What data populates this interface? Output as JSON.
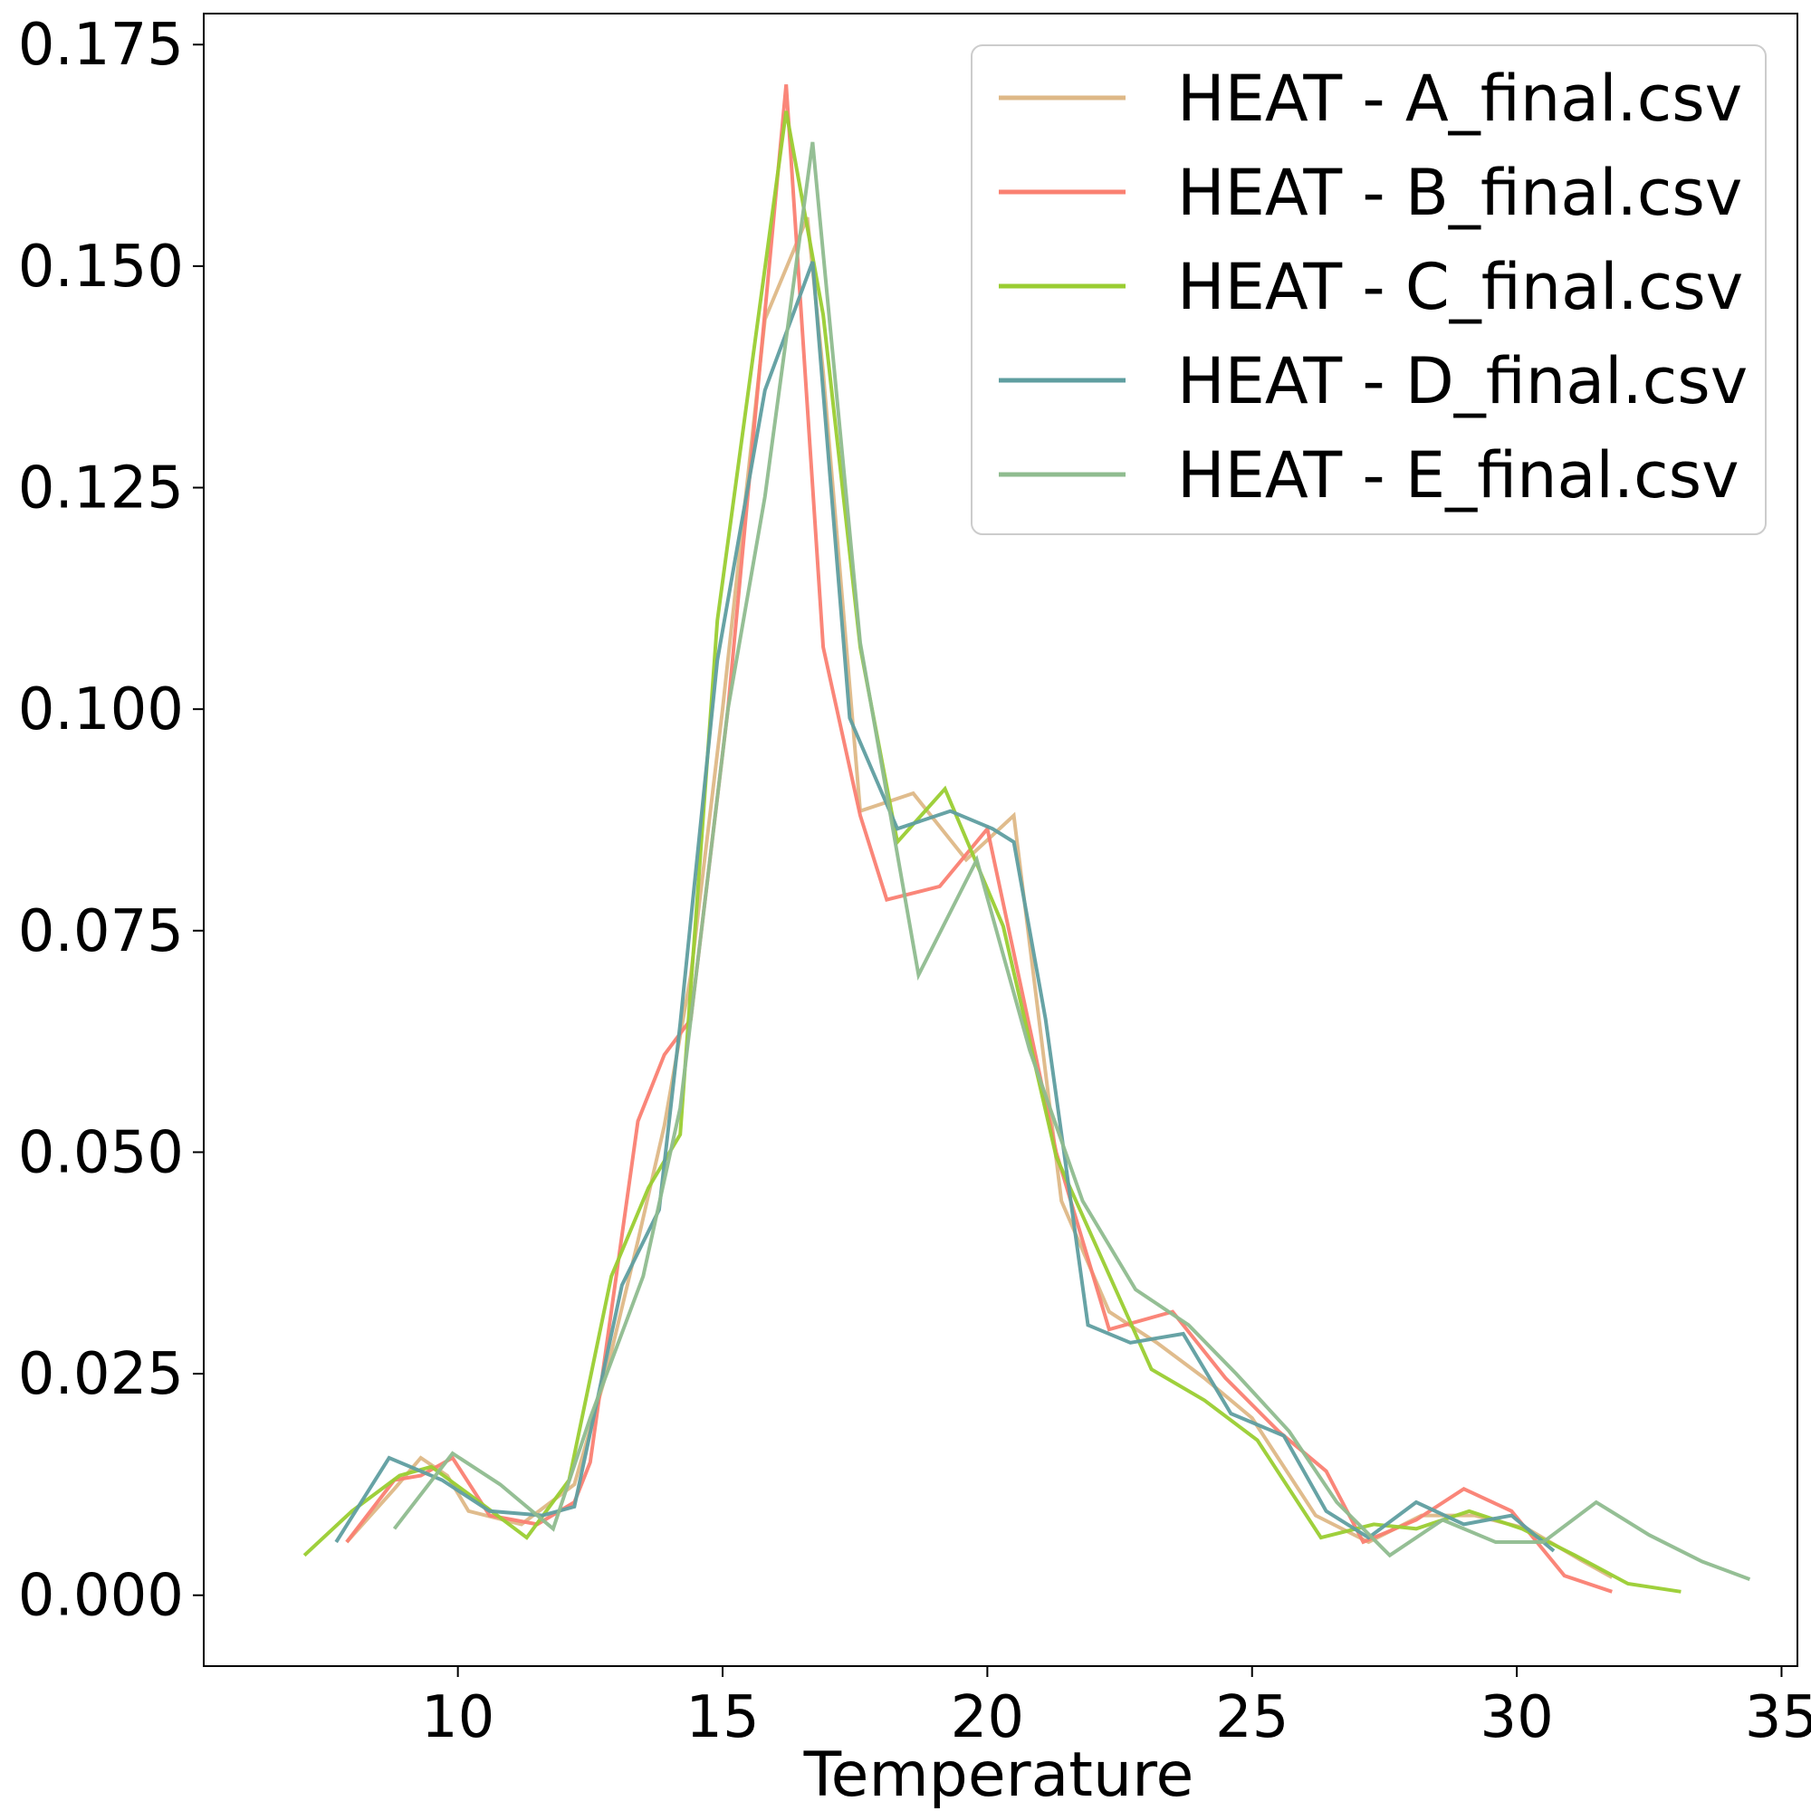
{
  "chart_data": {
    "type": "line",
    "title": "",
    "xlabel": "Temperature",
    "ylabel": "",
    "xlim": [
      5.2,
      35.3
    ],
    "ylim": [
      -0.008,
      0.1785
    ],
    "xticks": [
      10,
      15,
      20,
      25,
      30,
      35
    ],
    "xtick_labels": [
      "10",
      "15",
      "20",
      "25",
      "30",
      "35"
    ],
    "yticks": [
      0.0,
      0.025,
      0.05,
      0.075,
      0.1,
      0.125,
      0.15,
      0.175
    ],
    "ytick_labels": [
      "0.000",
      "0.025",
      "0.050",
      "0.075",
      "0.100",
      "0.125",
      "0.150",
      "0.175"
    ],
    "grid": false,
    "legend_position": "upper right",
    "series": [
      {
        "name": "HEAT - A_final.csv",
        "color": "#deb887",
        "x": [
          7.9,
          8.8,
          9.3,
          9.8,
          10.2,
          11.2,
          12.2,
          12.8,
          13.4,
          13.9,
          14.4,
          15.0,
          15.8,
          16.6,
          16.9,
          17.6,
          18.6,
          19.6,
          20.5,
          21.4,
          22.3,
          23.2,
          24.1,
          25.0,
          26.2,
          27.2,
          28.2,
          29.2,
          30.2,
          31.2,
          31.8
        ],
        "y": [
          0.006,
          0.012,
          0.0155,
          0.0135,
          0.0095,
          0.008,
          0.0125,
          0.025,
          0.04,
          0.053,
          0.07,
          0.1,
          0.144,
          0.1555,
          0.138,
          0.0885,
          0.0905,
          0.083,
          0.088,
          0.0445,
          0.032,
          0.0285,
          0.0245,
          0.02,
          0.009,
          0.006,
          0.009,
          0.009,
          0.0075,
          0.004,
          0.002
        ]
      },
      {
        "name": "HEAT - B_final.csv",
        "color": "#fa8072",
        "x": [
          7.9,
          8.8,
          9.3,
          9.9,
          10.6,
          11.5,
          12.2,
          12.5,
          13.4,
          13.9,
          14.4,
          15.1,
          16.2,
          16.9,
          17.6,
          18.1,
          19.1,
          20.0,
          21.3,
          22.3,
          23.5,
          24.5,
          25.5,
          26.4,
          27.1,
          28.1,
          29.0,
          29.9,
          30.9,
          31.8
        ],
        "y": [
          0.006,
          0.013,
          0.0135,
          0.0155,
          0.009,
          0.008,
          0.0105,
          0.015,
          0.0535,
          0.061,
          0.065,
          0.1,
          0.1705,
          0.107,
          0.088,
          0.0785,
          0.08,
          0.0865,
          0.05,
          0.03,
          0.032,
          0.0245,
          0.0185,
          0.014,
          0.006,
          0.0085,
          0.012,
          0.0095,
          0.0022,
          0.0004
        ]
      },
      {
        "name": "HEAT - C_final.csv",
        "color": "#9acd32",
        "x": [
          7.1,
          8.0,
          8.9,
          9.5,
          10.3,
          11.3,
          12.1,
          12.9,
          13.6,
          14.2,
          14.9,
          16.2,
          16.9,
          17.6,
          18.3,
          19.2,
          20.3,
          21.3,
          22.2,
          23.1,
          24.1,
          25.1,
          26.3,
          27.3,
          28.1,
          29.1,
          30.1,
          31.1,
          32.1,
          33.1
        ],
        "y": [
          0.0045,
          0.0095,
          0.0135,
          0.0145,
          0.011,
          0.0065,
          0.013,
          0.036,
          0.046,
          0.052,
          0.11,
          0.1675,
          0.1445,
          0.107,
          0.085,
          0.091,
          0.0755,
          0.0495,
          0.0375,
          0.0255,
          0.022,
          0.0175,
          0.0065,
          0.008,
          0.0075,
          0.0095,
          0.0075,
          0.0045,
          0.0013,
          0.0004
        ]
      },
      {
        "name": "HEAT - D_final.csv",
        "color": "#5f9ea0",
        "x": [
          7.7,
          8.7,
          9.7,
          10.6,
          11.6,
          12.2,
          13.1,
          13.8,
          14.2,
          14.9,
          15.8,
          16.7,
          17.4,
          18.3,
          19.3,
          20.1,
          20.5,
          21.1,
          21.9,
          22.7,
          23.7,
          24.6,
          25.6,
          26.4,
          27.2,
          28.1,
          29.0,
          29.9,
          30.7
        ],
        "y": [
          0.006,
          0.0155,
          0.013,
          0.0095,
          0.009,
          0.01,
          0.035,
          0.0435,
          0.0645,
          0.1055,
          0.136,
          0.1505,
          0.099,
          0.0865,
          0.0885,
          0.0865,
          0.085,
          0.065,
          0.0305,
          0.0285,
          0.0295,
          0.0205,
          0.018,
          0.0095,
          0.0065,
          0.0105,
          0.008,
          0.009,
          0.005
        ]
      },
      {
        "name": "HEAT - E_final.csv",
        "color": "#8fbc8f",
        "x": [
          8.8,
          9.9,
          10.8,
          11.8,
          12.5,
          13.5,
          14.2,
          15.1,
          15.8,
          16.7,
          17.6,
          18.7,
          19.8,
          20.8,
          21.8,
          22.8,
          23.8,
          24.7,
          25.7,
          26.6,
          27.6,
          28.6,
          29.6,
          30.5,
          31.5,
          32.5,
          33.5,
          34.4
        ],
        "y": [
          0.0075,
          0.016,
          0.0125,
          0.0075,
          0.02,
          0.036,
          0.055,
          0.1,
          0.124,
          0.164,
          0.1075,
          0.07,
          0.083,
          0.0615,
          0.0445,
          0.0345,
          0.0305,
          0.025,
          0.0185,
          0.0105,
          0.0045,
          0.0085,
          0.006,
          0.006,
          0.0105,
          0.0068,
          0.0038,
          0.0018
        ]
      }
    ]
  }
}
